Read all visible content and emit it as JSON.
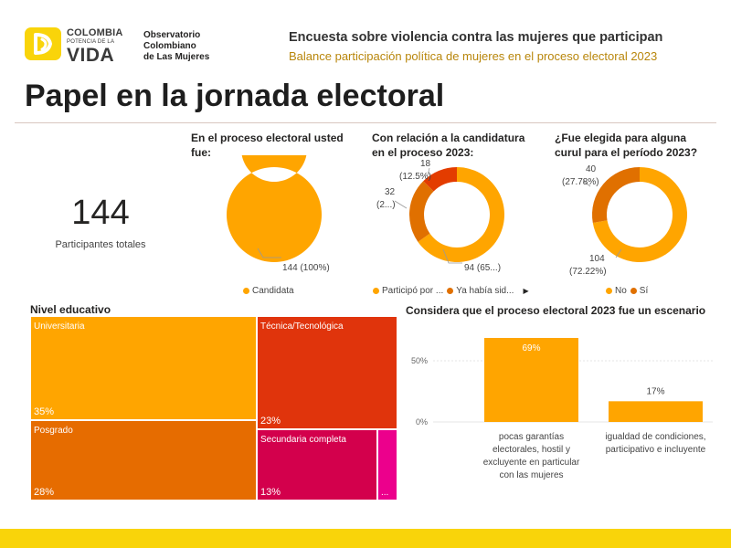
{
  "header": {
    "brand_line1": "COLOMBIA",
    "brand_line2": "POTENCIA DE LA",
    "brand_line3": "VIDA",
    "observatorio": [
      "Observatorio",
      "Colombiano",
      "de Las Mujeres"
    ],
    "title": "Encuesta sobre violencia contra las mujeres que participan",
    "subtitle": "Balance participación política de mujeres en el proceso electoral 2023",
    "page_title": "Papel en la jornada electoral"
  },
  "kpi": {
    "value": "144",
    "label": "Participantes totales"
  },
  "colors": {
    "orange": "#FFA500",
    "dark_orange": "#E07000",
    "red_orange": "#E33C00",
    "tm_orange": "#E66C00",
    "tm_red": "#E0340C",
    "crimson": "#D3004C",
    "magenta": "#EC008C",
    "logo_yellow": "#F9D40A",
    "bottom_bar": "#F9D40A"
  },
  "chart_data": [
    {
      "type": "pie",
      "title_lines": [
        "En el proceso electoral usted",
        "fue:"
      ],
      "slices": [
        {
          "name": "Candidata",
          "value": 144,
          "percent": 100
        }
      ],
      "labels": [
        "144 (100%)"
      ],
      "legend": [
        "Candidata"
      ]
    },
    {
      "type": "pie",
      "title_lines": [
        "Con relación a la candidatura",
        "en el proceso 2023:"
      ],
      "slices": [
        {
          "name": "Participó por ...",
          "value": 94
        },
        {
          "name": "Ya había sid...",
          "value": 32
        },
        {
          "name": "",
          "value": 18,
          "percent": 12.5
        }
      ],
      "labels": {
        "a1": "94 (65...)",
        "b1": "32",
        "b2": "(2...)",
        "c1": "18",
        "c2": "(12.5%)"
      },
      "legend": [
        "Participó por ...",
        "Ya había sid..."
      ]
    },
    {
      "type": "pie",
      "title_lines": [
        "¿Fue elegida para alguna",
        "curul para el período 2023?"
      ],
      "slices": [
        {
          "name": "No",
          "value": 104,
          "percent": 72.22
        },
        {
          "name": "Sí",
          "value": 40,
          "percent": 27.78
        }
      ],
      "labels": {
        "a1": "104",
        "a2": "(72.22%)",
        "b1": "40",
        "b2": "(27.78%)"
      },
      "legend": [
        "No",
        "Sí"
      ]
    },
    {
      "type": "treemap",
      "title": "Nivel educativo",
      "items": [
        {
          "name": "Universitaria",
          "percent": 35,
          "label": "35%"
        },
        {
          "name": "Posgrado",
          "percent": 28,
          "label": "28%"
        },
        {
          "name": "Técnica/Tecnológica",
          "percent": 23,
          "label": "23%"
        },
        {
          "name": "Secundaria completa",
          "percent": 13,
          "label": "13%"
        },
        {
          "name": "",
          "percent": 1,
          "label": "..."
        }
      ]
    },
    {
      "type": "bar",
      "title": "Considera que el proceso electoral 2023 fue un escenario",
      "categories": [
        [
          "pocas garantías",
          "electorales, hostil y",
          "excluyente en particular",
          "con las mujeres"
        ],
        [
          "igualdad de condiciones,",
          "participativo e incluyente"
        ]
      ],
      "values": [
        69,
        17
      ],
      "data_labels": [
        "69%",
        "17%"
      ],
      "yticks": [
        {
          "value": 0,
          "label": "0%"
        },
        {
          "value": 50,
          "label": "50%"
        }
      ],
      "ylim": [
        0,
        69
      ]
    }
  ]
}
